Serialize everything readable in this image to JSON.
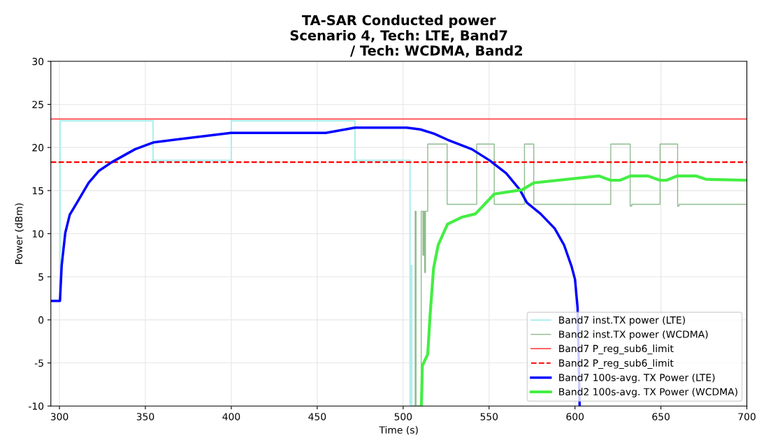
{
  "chart_data": {
    "type": "line",
    "title": "TA-SAR Conducted power\nScenario 4, Tech: LTE, Band7\n                / Tech: WCDMA, Band2",
    "xlabel": "Time (s)",
    "ylabel": "Power (dBm)",
    "xlim": [
      295,
      700
    ],
    "ylim": [
      -10,
      30
    ],
    "xticks": [
      300,
      350,
      400,
      450,
      500,
      550,
      600,
      650,
      700
    ],
    "yticks": [
      -10,
      -5,
      0,
      5,
      10,
      15,
      20,
      25,
      30
    ],
    "grid": true,
    "legend": "bottom right",
    "marker": "none",
    "series": [
      {
        "name": "Band7 inst.TX power (LTE)",
        "type": "step",
        "color": "#aeeeee",
        "x": [
          300,
          300.4,
          354.5,
          400,
          472,
          504,
          504.5,
          505
        ],
        "values": [
          2.2,
          23.1,
          18.5,
          23.1,
          18.5,
          -10,
          6.3,
          -10
        ]
      },
      {
        "name": "Band2 inst.TX power (WCDMA)",
        "type": "step",
        "color": "#8fbc8f",
        "x": [
          505,
          507,
          507.5,
          510.5,
          511.5,
          512,
          512.5,
          513,
          514.3,
          525.6,
          542.8,
          553,
          570.6,
          576,
          620.8,
          632.1,
          633,
          649.5,
          659.7,
          660.5,
          700
        ],
        "values": [
          -10,
          12.6,
          -10,
          12.6,
          7.5,
          12.6,
          5.5,
          12.6,
          20.4,
          13.4,
          20.4,
          13.4,
          20.4,
          13.4,
          20.4,
          13.2,
          13.4,
          20.4,
          13.2,
          13.4,
          13.4
        ]
      },
      {
        "name": "Band7 P_reg_sub6_limit",
        "color": "#ff4444",
        "line_style": "solid",
        "x": [
          295,
          700
        ],
        "values": [
          23.3,
          23.3
        ]
      },
      {
        "name": "Band2 P_reg_sub6_limit",
        "color": "#ff0000",
        "line_style": "dashed",
        "x": [
          295,
          700
        ],
        "values": [
          18.3,
          18.3
        ]
      },
      {
        "name": "Band7 100s-avg. TX Power (LTE)",
        "color": "#0000ff",
        "x": [
          295,
          300.3,
          301.3,
          303.4,
          306,
          310.2,
          317,
          323,
          330.5,
          344,
          355,
          399.7,
          455,
          472,
          502,
          510,
          518,
          525.8,
          540,
          550.3,
          560,
          567.9,
          572,
          580,
          588.2,
          593.6,
          598,
          600,
          601.5,
          602.7
        ],
        "values": [
          2.2,
          2.2,
          6.3,
          10.1,
          12.2,
          13.6,
          15.9,
          17.3,
          18.3,
          19.8,
          20.6,
          21.7,
          21.7,
          22.3,
          22.3,
          22.1,
          21.6,
          20.9,
          19.8,
          18.5,
          17,
          15.1,
          13.6,
          12.3,
          10.6,
          8.7,
          6.2,
          4.7,
          1.4,
          -10
        ]
      },
      {
        "name": "Band2 100s-avg. TX Power (WCDMA)",
        "color": "#44ee44",
        "x": [
          510.6,
          511.2,
          514.3,
          515.7,
          517.7,
          520.4,
          525.8,
          534,
          542.1,
          553,
          569.3,
          576,
          614,
          620.7,
          626.2,
          632.3,
          642.5,
          649.3,
          653.3,
          659.4,
          670.3,
          676.4,
          700
        ],
        "values": [
          -10,
          -5.3,
          -4.0,
          0.6,
          6.0,
          8.7,
          11.1,
          11.9,
          12.3,
          14.6,
          15.1,
          15.9,
          16.7,
          16.2,
          16.2,
          16.7,
          16.7,
          16.2,
          16.2,
          16.7,
          16.7,
          16.3,
          16.2
        ]
      }
    ]
  }
}
